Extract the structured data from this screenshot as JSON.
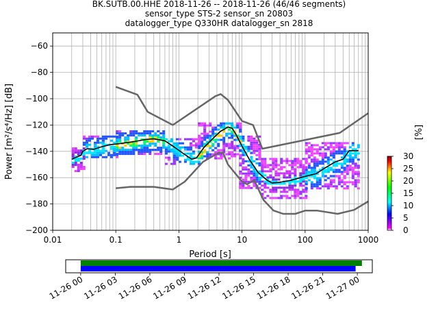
{
  "title_lines": [
    "BK.SUTB.00.HHE   2018-11-26 -- 2018-11-26  (46/46 segments)",
    "sensor_type STS-2 sensor_sn 20803",
    "datalogger_type Q330HR datalogger_sn 2818"
  ],
  "chart_data": [
    {
      "type": "heatmap",
      "subtype": "probabilistic power spectral density",
      "xlabel": "Period [s]",
      "ylabel": "Power [m²/s⁴/Hz] [dB]",
      "xscale": "log",
      "xlim": [
        0.01,
        1000
      ],
      "ylim": [
        -200,
        -50
      ],
      "x_ticks": [
        {
          "value": 0.01,
          "label": "0.01"
        },
        {
          "value": 0.1,
          "label": "0.1"
        },
        {
          "value": 1,
          "label": "1"
        },
        {
          "value": 10,
          "label": "10"
        },
        {
          "value": 100,
          "label": "100"
        },
        {
          "value": 1000,
          "label": "1000"
        }
      ],
      "y_ticks": [
        {
          "value": -200,
          "label": "−200"
        },
        {
          "value": -180,
          "label": "−180"
        },
        {
          "value": -160,
          "label": "−160"
        },
        {
          "value": -140,
          "label": "−140"
        },
        {
          "value": -120,
          "label": "−120"
        },
        {
          "value": -100,
          "label": "−100"
        },
        {
          "value": -80,
          "label": "−80"
        },
        {
          "value": -60,
          "label": "−60"
        }
      ],
      "grid": true,
      "colorbar": {
        "label": "[%]",
        "range": [
          0,
          30
        ],
        "ticks": [
          {
            "value": 0,
            "label": "0"
          },
          {
            "value": 5,
            "label": "5"
          },
          {
            "value": 10,
            "label": "10"
          },
          {
            "value": 15,
            "label": "15"
          },
          {
            "value": 20,
            "label": "20"
          },
          {
            "value": 25,
            "label": "25"
          },
          {
            "value": 30,
            "label": "30"
          }
        ],
        "colors": [
          "#ffffff",
          "#ff00ff",
          "#0000ff",
          "#00ffff",
          "#00ff00",
          "#ffff00",
          "#ff0000",
          "#800000"
        ]
      },
      "colors": {
        "nlnm_nhnm": "#666666",
        "mean": "#000000"
      },
      "series": [
        {
          "points": [
            [
              0.1,
              -91
            ],
            [
              0.22,
              -97
            ],
            [
              0.32,
              -110
            ],
            [
              0.8,
              -120
            ],
            [
              3.8,
              -98
            ],
            [
              4.6,
              -96.5
            ],
            [
              6,
              -101
            ],
            [
              10,
              -117
            ],
            [
              15,
              -120
            ],
            [
              21,
              -138
            ],
            [
              354,
              -126
            ],
            [
              1000,
              -111
            ]
          ]
        },
        {
          "points": [
            [
              0.1,
              -168
            ],
            [
              0.17,
              -167
            ],
            [
              0.4,
              -167
            ],
            [
              0.8,
              -169
            ],
            [
              1.24,
              -163
            ],
            [
              2.4,
              -148
            ],
            [
              4.3,
              -141
            ],
            [
              5,
              -141
            ],
            [
              6,
              -150
            ],
            [
              10,
              -163
            ],
            [
              12,
              -165
            ],
            [
              15.6,
              -162
            ],
            [
              21.9,
              -177
            ],
            [
              31.6,
              -185
            ],
            [
              45,
              -187.5
            ],
            [
              70,
              -187.5
            ],
            [
              101,
              -185
            ],
            [
              154,
              -185
            ],
            [
              328,
              -187.5
            ],
            [
              600,
              -184.5
            ],
            [
              1000,
              -178
            ]
          ]
        },
        {
          "points": [
            [
              0.02,
              -146
            ],
            [
              0.025,
              -144
            ],
            [
              0.028,
              -143
            ],
            [
              0.03,
              -140
            ],
            [
              0.035,
              -138
            ],
            [
              0.045,
              -138.5
            ],
            [
              0.055,
              -137
            ],
            [
              0.08,
              -135
            ],
            [
              0.12,
              -134
            ],
            [
              0.2,
              -132.5
            ],
            [
              0.3,
              -131
            ],
            [
              0.4,
              -130.5
            ],
            [
              0.6,
              -132
            ],
            [
              0.8,
              -136
            ],
            [
              1.2,
              -142
            ],
            [
              1.6,
              -146
            ],
            [
              1.9,
              -145
            ],
            [
              2.5,
              -137
            ],
            [
              3.5,
              -130
            ],
            [
              4.5,
              -125
            ],
            [
              6,
              -121.5
            ],
            [
              7,
              -122.5
            ],
            [
              8,
              -127
            ],
            [
              10,
              -136
            ],
            [
              13,
              -146
            ],
            [
              18,
              -156
            ],
            [
              25,
              -162
            ],
            [
              30,
              -164
            ],
            [
              40,
              -163.5
            ],
            [
              60,
              -162
            ],
            [
              100,
              -159
            ],
            [
              150,
              -157
            ],
            [
              200,
              -153
            ],
            [
              300,
              -148
            ],
            [
              400,
              -146
            ],
            [
              500,
              -139.5
            ],
            [
              700,
              -139.5
            ]
          ]
        }
      ],
      "density": [
        {
          "x_range": [
            0.02,
            0.03
          ],
          "y_range": [
            -155,
            -137
          ],
          "level": "low"
        },
        {
          "x_range": [
            0.03,
            0.1
          ],
          "y_range": [
            -145,
            -128
          ],
          "level": "medium"
        },
        {
          "x_range": [
            0.1,
            0.6
          ],
          "y_range": [
            -142,
            -124
          ],
          "level": "high"
        },
        {
          "x_range": [
            0.6,
            2
          ],
          "y_range": [
            -150,
            -130
          ],
          "level": "medium"
        },
        {
          "x_range": [
            2,
            9
          ],
          "y_range": [
            -145,
            -118
          ],
          "level": "high"
        },
        {
          "x_range": [
            9,
            20
          ],
          "y_range": [
            -168,
            -128
          ],
          "level": "medium"
        },
        {
          "x_range": [
            20,
            100
          ],
          "y_range": [
            -175,
            -145
          ],
          "level": "low"
        },
        {
          "x_range": [
            100,
            700
          ],
          "y_range": [
            -168,
            -133
          ],
          "level": "medium"
        }
      ]
    },
    {
      "type": "timeline",
      "x_tick_labels": [
        "11-26 00",
        "11-26 03",
        "11-26 06",
        "11-26 09",
        "11-26 12",
        "11-26 15",
        "11-26 18",
        "11-26 21",
        "11-27 00"
      ],
      "x_range_hours": [
        -1.3,
        25.3
      ],
      "bars": [
        {
          "start_hour": 0,
          "end_hour": 24.4,
          "color": "#008000"
        },
        {
          "start_hour": 0,
          "end_hour": 23.85,
          "color": "#0000ff"
        }
      ]
    }
  ]
}
